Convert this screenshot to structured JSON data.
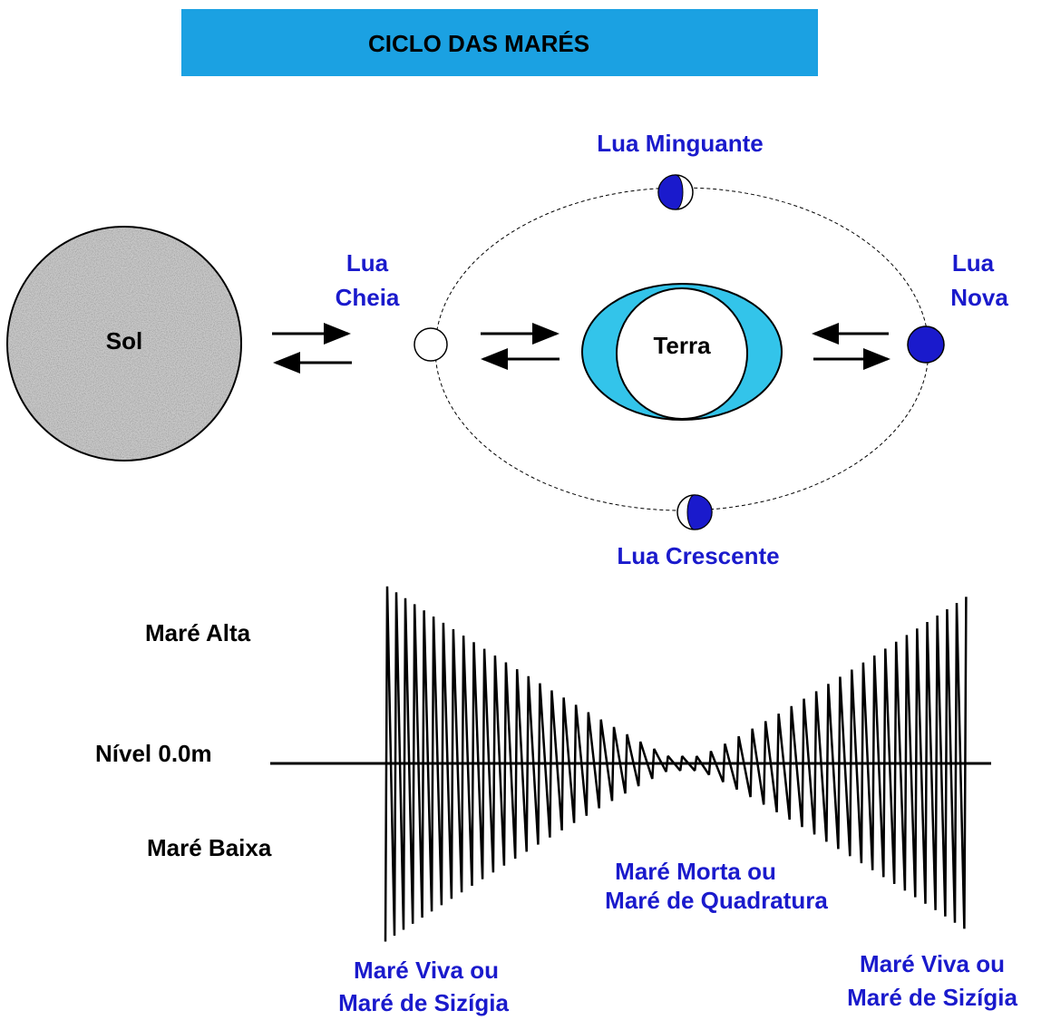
{
  "header": {
    "title": "CICLO DAS MARÉS"
  },
  "orbit": {
    "sun": "Sol",
    "earth": "Terra",
    "full_moon": [
      "Lua",
      "Cheia"
    ],
    "new_moon": [
      "Lua",
      "Nova"
    ],
    "waning_moon": "Lua Minguante",
    "waxing_moon": "Lua Crescente"
  },
  "tide": {
    "high": "Maré Alta",
    "level": "Nível 0.0m",
    "low": "Maré Baixa",
    "neap": [
      "Maré Morta ou",
      "Maré de Quadratura"
    ],
    "spring_left": [
      "Maré Viva ou",
      "Maré de Sizígia"
    ],
    "spring_right": [
      "Maré Viva ou",
      "Maré de Sizígia"
    ]
  }
}
